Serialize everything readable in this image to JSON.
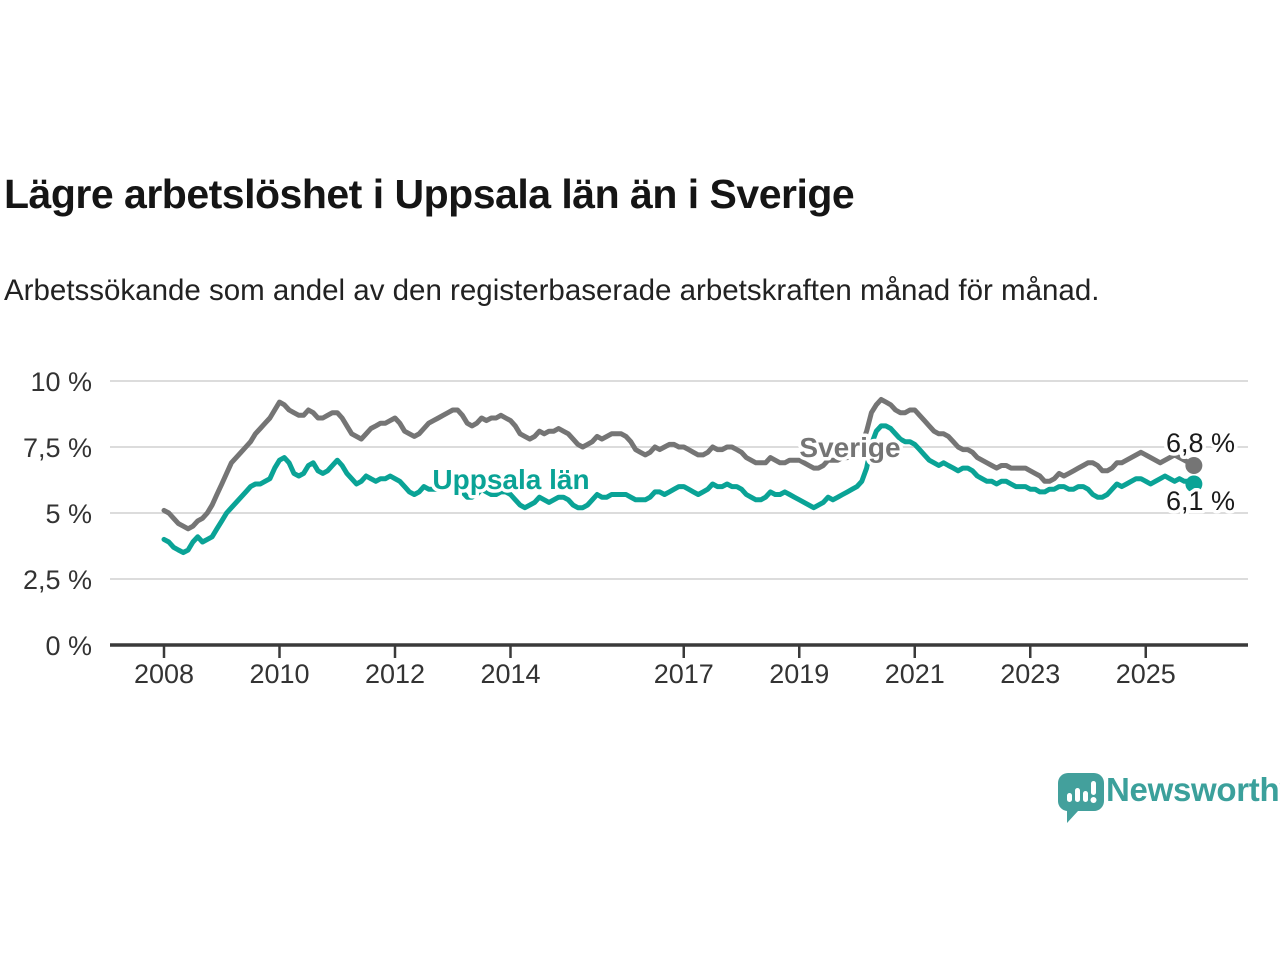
{
  "header": {
    "title": "Lägre arbetslöshet i Uppsala län än i Sverige",
    "subtitle": "Arbetssökande som andel av den registerbaserade arbetskraften månad för månad."
  },
  "branding": {
    "name": "Newsworthy",
    "color": "#3ba09b"
  },
  "chart_data": {
    "type": "line",
    "x_start": "2008-01",
    "x_end": "2025-11",
    "frequency": "monthly",
    "ylim": [
      0,
      10
    ],
    "grid": "horizontal",
    "yticks": [
      {
        "value": 0,
        "label": "0 %"
      },
      {
        "value": 2.5,
        "label": "2,5 %"
      },
      {
        "value": 5,
        "label": "5 %"
      },
      {
        "value": 7.5,
        "label": "7,5 %"
      },
      {
        "value": 10,
        "label": "10 %"
      }
    ],
    "xticks": [
      2008,
      2010,
      2012,
      2014,
      2017,
      2019,
      2021,
      2023,
      2025
    ],
    "series": [
      {
        "name": "Sverige",
        "color": "#757575",
        "end_label": "6,8 %",
        "values": [
          5.1,
          5.0,
          4.8,
          4.6,
          4.5,
          4.4,
          4.5,
          4.7,
          4.8,
          5.0,
          5.3,
          5.7,
          6.1,
          6.5,
          6.9,
          7.1,
          7.3,
          7.5,
          7.7,
          8.0,
          8.2,
          8.4,
          8.6,
          8.9,
          9.2,
          9.1,
          8.9,
          8.8,
          8.7,
          8.7,
          8.9,
          8.8,
          8.6,
          8.6,
          8.7,
          8.8,
          8.8,
          8.6,
          8.3,
          8.0,
          7.9,
          7.8,
          8.0,
          8.2,
          8.3,
          8.4,
          8.4,
          8.5,
          8.6,
          8.4,
          8.1,
          8.0,
          7.9,
          8.0,
          8.2,
          8.4,
          8.5,
          8.6,
          8.7,
          8.8,
          8.9,
          8.9,
          8.7,
          8.4,
          8.3,
          8.4,
          8.6,
          8.5,
          8.6,
          8.6,
          8.7,
          8.6,
          8.5,
          8.3,
          8.0,
          7.9,
          7.8,
          7.9,
          8.1,
          8.0,
          8.1,
          8.1,
          8.2,
          8.1,
          8.0,
          7.8,
          7.6,
          7.5,
          7.6,
          7.7,
          7.9,
          7.8,
          7.9,
          8.0,
          8.0,
          8.0,
          7.9,
          7.7,
          7.4,
          7.3,
          7.2,
          7.3,
          7.5,
          7.4,
          7.5,
          7.6,
          7.6,
          7.5,
          7.5,
          7.4,
          7.3,
          7.2,
          7.2,
          7.3,
          7.5,
          7.4,
          7.4,
          7.5,
          7.5,
          7.4,
          7.3,
          7.1,
          7.0,
          6.9,
          6.9,
          6.9,
          7.1,
          7.0,
          6.9,
          6.9,
          7.0,
          7.0,
          7.0,
          6.9,
          6.8,
          6.7,
          6.7,
          6.8,
          7.0,
          7.0,
          7.0,
          7.1,
          7.1,
          7.2,
          7.4,
          7.6,
          8.1,
          8.8,
          9.1,
          9.3,
          9.2,
          9.1,
          8.9,
          8.8,
          8.8,
          8.9,
          8.9,
          8.7,
          8.5,
          8.3,
          8.1,
          8.0,
          8.0,
          7.9,
          7.7,
          7.5,
          7.4,
          7.4,
          7.3,
          7.1,
          7.0,
          6.9,
          6.8,
          6.7,
          6.8,
          6.8,
          6.7,
          6.7,
          6.7,
          6.7,
          6.6,
          6.5,
          6.4,
          6.2,
          6.2,
          6.3,
          6.5,
          6.4,
          6.5,
          6.6,
          6.7,
          6.8,
          6.9,
          6.9,
          6.8,
          6.6,
          6.6,
          6.7,
          6.9,
          6.9,
          7.0,
          7.1,
          7.2,
          7.3,
          7.2,
          7.1,
          7.0,
          6.9,
          7.0,
          7.1,
          7.2,
          7.1,
          7.0,
          6.9,
          6.8
        ]
      },
      {
        "name": "Uppsala län",
        "color": "#0aa396",
        "end_label": "6,1 %",
        "values": [
          4.0,
          3.9,
          3.7,
          3.6,
          3.5,
          3.6,
          3.9,
          4.1,
          3.9,
          4.0,
          4.1,
          4.4,
          4.7,
          5.0,
          5.2,
          5.4,
          5.6,
          5.8,
          6.0,
          6.1,
          6.1,
          6.2,
          6.3,
          6.7,
          7.0,
          7.1,
          6.9,
          6.5,
          6.4,
          6.5,
          6.8,
          6.9,
          6.6,
          6.5,
          6.6,
          6.8,
          7.0,
          6.8,
          6.5,
          6.3,
          6.1,
          6.2,
          6.4,
          6.3,
          6.2,
          6.3,
          6.3,
          6.4,
          6.3,
          6.2,
          6.0,
          5.8,
          5.7,
          5.8,
          6.0,
          5.9,
          5.9,
          5.9,
          6.0,
          6.0,
          6.0,
          5.9,
          5.8,
          5.6,
          5.6,
          5.7,
          5.9,
          5.8,
          5.7,
          5.7,
          5.8,
          5.8,
          5.7,
          5.5,
          5.3,
          5.2,
          5.3,
          5.4,
          5.6,
          5.5,
          5.4,
          5.5,
          5.6,
          5.6,
          5.5,
          5.3,
          5.2,
          5.2,
          5.3,
          5.5,
          5.7,
          5.6,
          5.6,
          5.7,
          5.7,
          5.7,
          5.7,
          5.6,
          5.5,
          5.5,
          5.5,
          5.6,
          5.8,
          5.8,
          5.7,
          5.8,
          5.9,
          6.0,
          6.0,
          5.9,
          5.8,
          5.7,
          5.8,
          5.9,
          6.1,
          6.0,
          6.0,
          6.1,
          6.0,
          6.0,
          5.9,
          5.7,
          5.6,
          5.5,
          5.5,
          5.6,
          5.8,
          5.7,
          5.7,
          5.8,
          5.7,
          5.6,
          5.5,
          5.4,
          5.3,
          5.2,
          5.3,
          5.4,
          5.6,
          5.5,
          5.6,
          5.7,
          5.8,
          5.9,
          6.0,
          6.2,
          6.7,
          7.6,
          8.1,
          8.3,
          8.3,
          8.2,
          8.0,
          7.8,
          7.7,
          7.7,
          7.6,
          7.4,
          7.2,
          7.0,
          6.9,
          6.8,
          6.9,
          6.8,
          6.7,
          6.6,
          6.7,
          6.7,
          6.6,
          6.4,
          6.3,
          6.2,
          6.2,
          6.1,
          6.2,
          6.2,
          6.1,
          6.0,
          6.0,
          6.0,
          5.9,
          5.9,
          5.8,
          5.8,
          5.9,
          5.9,
          6.0,
          6.0,
          5.9,
          5.9,
          6.0,
          6.0,
          5.9,
          5.7,
          5.6,
          5.6,
          5.7,
          5.9,
          6.1,
          6.0,
          6.1,
          6.2,
          6.3,
          6.3,
          6.2,
          6.1,
          6.2,
          6.3,
          6.4,
          6.3,
          6.2,
          6.3,
          6.2,
          6.2,
          6.1
        ]
      }
    ]
  }
}
